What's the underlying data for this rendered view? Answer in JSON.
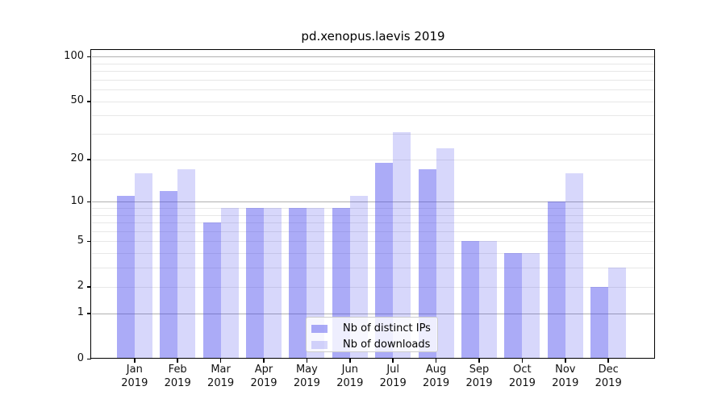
{
  "title": "pd.xenopus.laevis 2019",
  "chart_data": {
    "type": "bar",
    "title": "pd.xenopus.laevis 2019",
    "months": [
      "Jan",
      "Feb",
      "Mar",
      "Apr",
      "May",
      "Jun",
      "Jul",
      "Aug",
      "Sep",
      "Oct",
      "Nov",
      "Dec"
    ],
    "year_label": "2019",
    "series": [
      {
        "name": "Nb of distinct IPs",
        "color": "rgba(68,68,238,0.45)",
        "values": [
          11,
          12,
          7,
          9,
          9,
          9,
          19,
          17,
          5,
          4,
          10,
          2
        ]
      },
      {
        "name": "Nb of downloads",
        "color": "rgba(68,68,238,0.21)",
        "values": [
          16,
          17,
          9,
          9,
          9,
          11,
          31,
          24,
          5,
          4,
          16,
          3
        ]
      }
    ],
    "y_scale": "log1p",
    "ylim": [
      0,
      111
    ],
    "y_ticks": [
      0,
      1,
      2,
      5,
      10,
      20,
      50,
      100
    ],
    "y_tick_labels": [
      "0",
      "1",
      "2",
      "5",
      "10",
      "20",
      "50",
      "100"
    ],
    "y_major_gridlines": [
      1,
      10,
      100
    ],
    "y_minor_gridlines": [
      2,
      3,
      4,
      5,
      6,
      7,
      8,
      9,
      20,
      30,
      40,
      50,
      60,
      70,
      80,
      90
    ],
    "grid": "on",
    "legend_position": "lower center",
    "axis_color": "#000000",
    "background_color": "#ffffff"
  }
}
